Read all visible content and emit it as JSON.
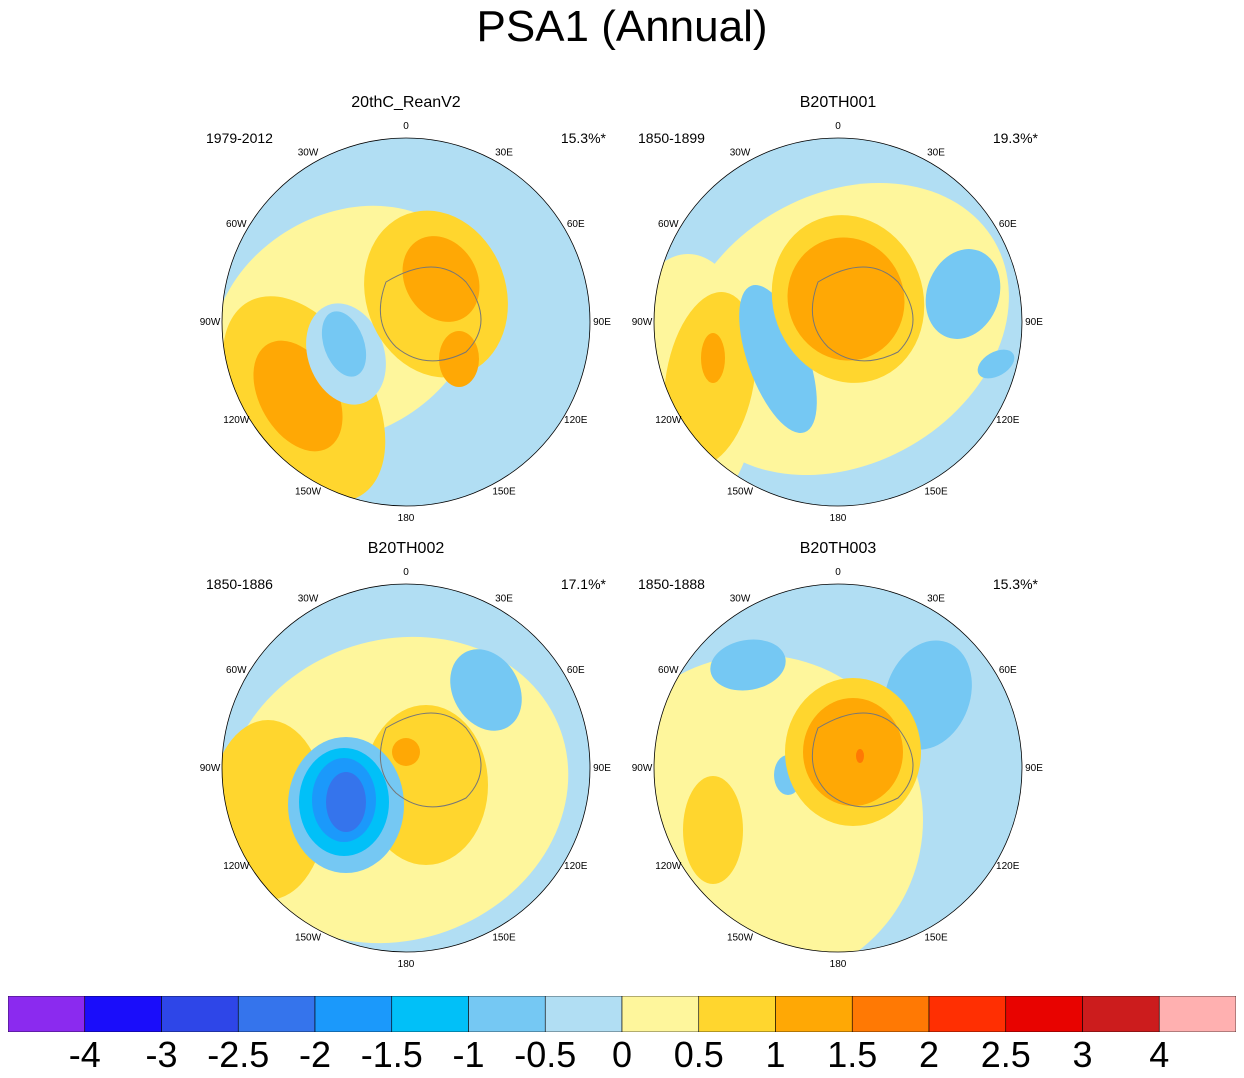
{
  "title": "PSA1 (Annual)",
  "chart_data": {
    "type": "polar_contour_map",
    "projection": "South polar stereographic",
    "longitude_labels": [
      "0",
      "30E",
      "60E",
      "90E",
      "120E",
      "150E",
      "180",
      "150W",
      "120W",
      "90W",
      "60W",
      "30W"
    ],
    "panels": [
      {
        "title": "20thC_ReanV2",
        "period": "1979-2012",
        "variance_explained": "15.3%*"
      },
      {
        "title": "B20TH001",
        "period": "1850-1899",
        "variance_explained": "19.3%*"
      },
      {
        "title": "B20TH002",
        "period": "1850-1886",
        "variance_explained": "17.1%*"
      },
      {
        "title": "B20TH003",
        "period": "1850-1888",
        "variance_explained": "15.3%*"
      }
    ],
    "colorbar": {
      "labels": [
        "-4",
        "-3",
        "-2.5",
        "-2",
        "-1.5",
        "-1",
        "-0.5",
        "0",
        "0.5",
        "1",
        "1.5",
        "2",
        "2.5",
        "3",
        "4"
      ],
      "colors": [
        "#8b2aef",
        "#1a0dfa",
        "#2e46e8",
        "#3574ec",
        "#1b99fb",
        "#01c0f8",
        "#75c8f3",
        "#b1def3",
        "#fef69c",
        "#ffd62e",
        "#ffa805",
        "#ff7904",
        "#ff2f02",
        "#e80300",
        "#cc1c1d",
        "#ffb0b0"
      ]
    }
  }
}
